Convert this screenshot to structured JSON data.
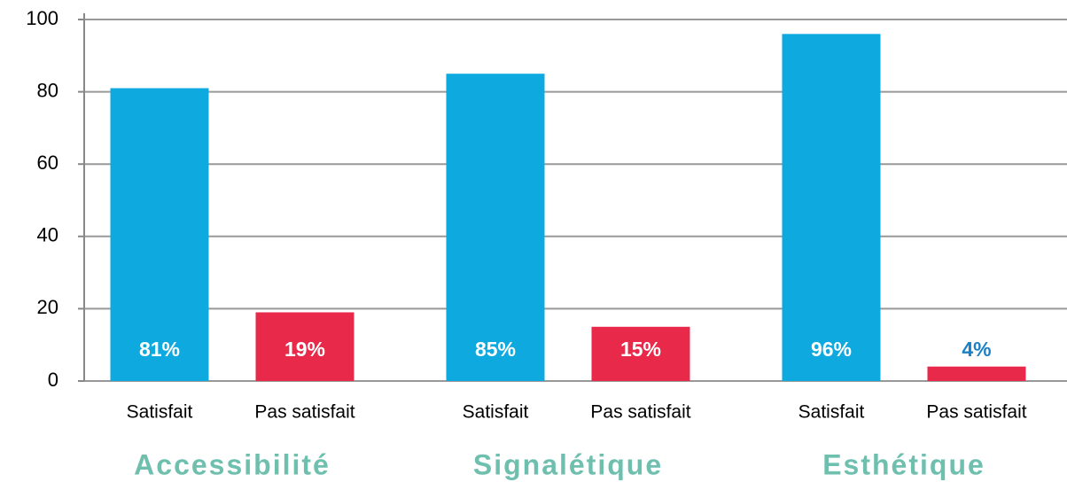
{
  "chart_data": {
    "type": "bar",
    "groups": [
      "Accessibilité",
      "Signalétique",
      "Esthétique"
    ],
    "series": [
      {
        "name": "Satisfait",
        "color": "#0eaadf",
        "values": [
          81,
          85,
          96
        ],
        "value_labels": [
          "81%",
          "85%",
          "96%"
        ]
      },
      {
        "name": "Pas satisfait",
        "color": "#e8294a",
        "values": [
          19,
          15,
          4
        ],
        "value_labels": [
          "19%",
          "15%",
          "4%"
        ]
      }
    ],
    "ylim": [
      0,
      100
    ],
    "yticks": [
      0,
      20,
      40,
      60,
      80,
      100
    ],
    "grid": true
  }
}
